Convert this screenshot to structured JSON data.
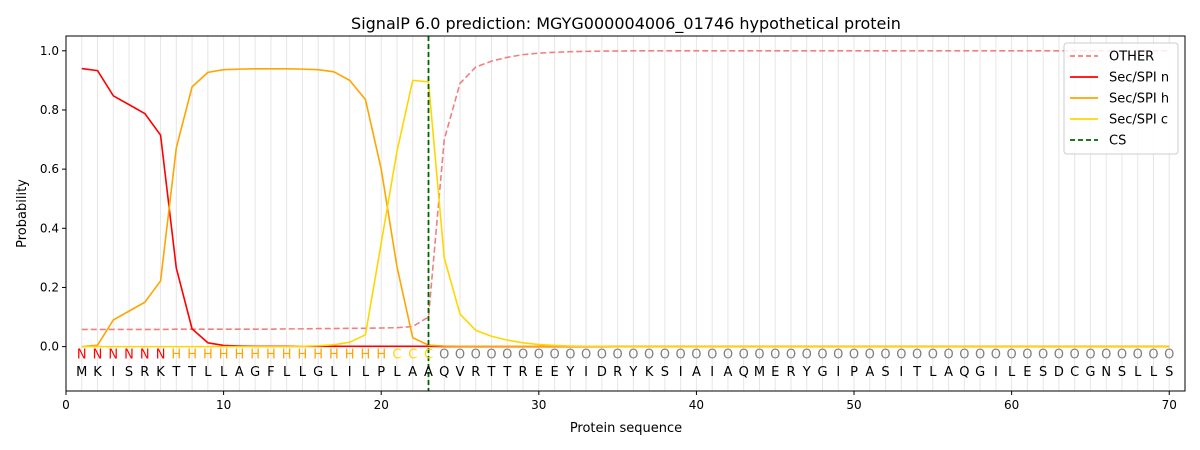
{
  "chart_data": {
    "type": "line",
    "title": "SignalP 6.0 prediction: MGYG000004006_01746 hypothetical protein",
    "xlabel": "Protein sequence",
    "ylabel": "Probability",
    "xlim": [
      0,
      71
    ],
    "ylim": [
      -0.15,
      1.05
    ],
    "x_ticks": [
      0,
      10,
      20,
      30,
      40,
      50,
      60,
      70
    ],
    "y_ticks": [
      0.0,
      0.2,
      0.4,
      0.6,
      0.8,
      1.0
    ],
    "x_tick_labels": [
      "0",
      "10",
      "20",
      "30",
      "40",
      "50",
      "60",
      "70"
    ],
    "y_tick_labels": [
      "0.0",
      "0.2",
      "0.4",
      "0.6",
      "0.8",
      "1.0"
    ],
    "grid": "vertical lines at each residue",
    "legend_position": "top-right",
    "sequence": [
      "M",
      "K",
      "I",
      "S",
      "R",
      "K",
      "T",
      "T",
      "L",
      "L",
      "A",
      "G",
      "F",
      "L",
      "L",
      "G",
      "L",
      "I",
      "L",
      "P",
      "L",
      "A",
      "A",
      "Q",
      "V",
      "R",
      "T",
      "T",
      "R",
      "E",
      "E",
      "Y",
      "I",
      "D",
      "R",
      "Y",
      "K",
      "S",
      "I",
      "A",
      "I",
      "A",
      "Q",
      "M",
      "E",
      "R",
      "Y",
      "G",
      "I",
      "P",
      "A",
      "S",
      "I",
      "T",
      "L",
      "A",
      "Q",
      "G",
      "I",
      "L",
      "E",
      "S",
      "D",
      "C",
      "G",
      "N",
      "S",
      "L",
      "L",
      "S"
    ],
    "labels": [
      "N",
      "N",
      "N",
      "N",
      "N",
      "N",
      "H",
      "H",
      "H",
      "H",
      "H",
      "H",
      "H",
      "H",
      "H",
      "H",
      "H",
      "H",
      "H",
      "H",
      "C",
      "C",
      "C",
      "O",
      "O",
      "O",
      "O",
      "O",
      "O",
      "O",
      "O",
      "O",
      "O",
      "O",
      "O",
      "O",
      "O",
      "O",
      "O",
      "O",
      "O",
      "O",
      "O",
      "O",
      "O",
      "O",
      "O",
      "O",
      "O",
      "O",
      "O",
      "O",
      "O",
      "O",
      "O",
      "O",
      "O",
      "O",
      "O",
      "O",
      "O",
      "O",
      "O",
      "O",
      "O",
      "O",
      "O",
      "O",
      "O",
      "O"
    ],
    "label_colors": {
      "N": "#ff0000",
      "H": "#ffa500",
      "C": "#ffd700",
      "O": "#808080"
    },
    "cleavage_site": 23,
    "series": [
      {
        "name": "OTHER",
        "color": "#f08080",
        "style": "dashed",
        "values": [
          0.058,
          0.058,
          0.058,
          0.058,
          0.058,
          0.058,
          0.059,
          0.059,
          0.059,
          0.059,
          0.059,
          0.059,
          0.059,
          0.06,
          0.06,
          0.061,
          0.061,
          0.062,
          0.062,
          0.063,
          0.064,
          0.068,
          0.1,
          0.7,
          0.89,
          0.945,
          0.965,
          0.978,
          0.987,
          0.992,
          0.995,
          0.997,
          0.998,
          0.999,
          0.999,
          1.0,
          1.0,
          1.0,
          1.0,
          1.0,
          1.0,
          1.0,
          1.0,
          1.0,
          1.0,
          1.0,
          1.0,
          1.0,
          1.0,
          1.0,
          1.0,
          1.0,
          1.0,
          1.0,
          1.0,
          1.0,
          1.0,
          1.0,
          1.0,
          1.0,
          1.0,
          1.0,
          1.0,
          1.0,
          1.0,
          1.0,
          1.0,
          1.0,
          1.0,
          1.0
        ]
      },
      {
        "name": "Sec/SPI n",
        "color": "#ff0000",
        "style": "solid",
        "values": [
          0.94,
          0.933,
          0.848,
          0.818,
          0.788,
          0.715,
          0.265,
          0.06,
          0.013,
          0.004,
          0.002,
          0.001,
          0.001,
          0.001,
          0.001,
          0.001,
          0.001,
          0.001,
          0.001,
          0.001,
          0.001,
          0.001,
          0.001,
          0.0,
          0.0,
          0.0,
          0.0,
          0.0,
          0.0,
          0.0,
          0.0,
          0.0,
          0.0,
          0.0,
          0.0,
          0.0,
          0.0,
          0.0,
          0.0,
          0.0,
          0.0,
          0.0,
          0.0,
          0.0,
          0.0,
          0.0,
          0.0,
          0.0,
          0.0,
          0.0,
          0.0,
          0.0,
          0.0,
          0.0,
          0.0,
          0.0,
          0.0,
          0.0,
          0.0,
          0.0,
          0.0,
          0.0,
          0.0,
          0.0,
          0.0,
          0.0,
          0.0,
          0.0,
          0.0,
          0.0
        ]
      },
      {
        "name": "Sec/SPI h",
        "color": "#ffa500",
        "style": "solid",
        "values": [
          0.0,
          0.005,
          0.09,
          0.12,
          0.15,
          0.222,
          0.672,
          0.878,
          0.927,
          0.936,
          0.938,
          0.939,
          0.939,
          0.939,
          0.938,
          0.936,
          0.929,
          0.9,
          0.835,
          0.6,
          0.27,
          0.03,
          0.005,
          0.002,
          0.001,
          0.001,
          0.001,
          0.001,
          0.001,
          0.001,
          0.001,
          0.001,
          0.001,
          0.001,
          0.001,
          0.001,
          0.001,
          0.001,
          0.001,
          0.001,
          0.001,
          0.001,
          0.001,
          0.001,
          0.001,
          0.001,
          0.001,
          0.001,
          0.001,
          0.001,
          0.001,
          0.001,
          0.001,
          0.001,
          0.001,
          0.001,
          0.001,
          0.001,
          0.001,
          0.001,
          0.001,
          0.001,
          0.001,
          0.001,
          0.001,
          0.001,
          0.001,
          0.001,
          0.001,
          0.001
        ]
      },
      {
        "name": "Sec/SPI c",
        "color": "#ffd700",
        "style": "solid",
        "values": [
          0.0,
          0.0,
          0.0,
          0.0,
          0.0,
          0.0,
          0.0,
          0.0,
          0.0,
          0.0,
          0.0,
          0.0,
          0.0,
          0.0,
          0.001,
          0.003,
          0.006,
          0.015,
          0.04,
          0.35,
          0.66,
          0.9,
          0.895,
          0.3,
          0.11,
          0.055,
          0.035,
          0.022,
          0.013,
          0.007,
          0.004,
          0.002,
          0.001,
          0.001,
          0.0,
          0.0,
          0.0,
          0.0,
          0.0,
          0.0,
          0.0,
          0.0,
          0.0,
          0.0,
          0.0,
          0.0,
          0.0,
          0.0,
          0.0,
          0.0,
          0.0,
          0.0,
          0.0,
          0.0,
          0.0,
          0.0,
          0.0,
          0.0,
          0.0,
          0.0,
          0.0,
          0.0,
          0.0,
          0.0,
          0.0,
          0.0,
          0.0,
          0.0,
          0.0,
          0.0
        ]
      }
    ],
    "legend": [
      {
        "label": "OTHER",
        "color": "#f08080",
        "style": "dashed"
      },
      {
        "label": "Sec/SPI n",
        "color": "#ff0000",
        "style": "solid"
      },
      {
        "label": "Sec/SPI h",
        "color": "#ffa500",
        "style": "solid"
      },
      {
        "label": "Sec/SPI c",
        "color": "#ffd700",
        "style": "solid"
      },
      {
        "label": "CS",
        "color": "#006400",
        "style": "dashed"
      }
    ]
  }
}
